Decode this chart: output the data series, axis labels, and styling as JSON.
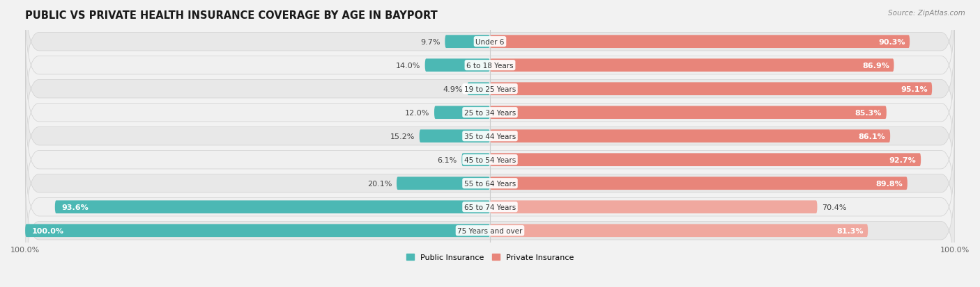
{
  "title": "PUBLIC VS PRIVATE HEALTH INSURANCE COVERAGE BY AGE IN BAYPORT",
  "source": "Source: ZipAtlas.com",
  "categories": [
    "Under 6",
    "6 to 18 Years",
    "19 to 25 Years",
    "25 to 34 Years",
    "35 to 44 Years",
    "45 to 54 Years",
    "55 to 64 Years",
    "65 to 74 Years",
    "75 Years and over"
  ],
  "public_values": [
    9.7,
    14.0,
    4.9,
    12.0,
    15.2,
    6.1,
    20.1,
    93.6,
    100.0
  ],
  "private_values": [
    90.3,
    86.9,
    95.1,
    85.3,
    86.1,
    92.7,
    89.8,
    70.4,
    81.3
  ],
  "public_color": "#4cb8b4",
  "private_color_normal": "#e8857a",
  "private_color_light": "#f0a89f",
  "bg_color": "#f2f2f2",
  "row_bg": "#e8e8e8",
  "row_bg_alt": "#f0f0f0",
  "title_fontsize": 10.5,
  "label_fontsize": 8,
  "tick_fontsize": 8,
  "max_val": 100.0
}
